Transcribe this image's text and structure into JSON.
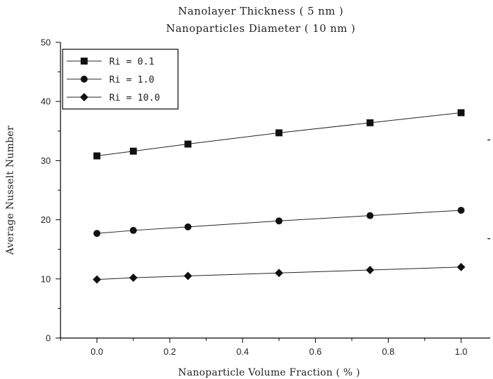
{
  "chart_data": {
    "type": "line",
    "title": "Nanolayer  Thickness    ( 5 nm )",
    "subtitle": "Nanoparticles Diameter  ( 10 nm )",
    "xlabel": "Nanoparticle Volume Fraction  ( % )",
    "ylabel": "Average Nusselt Number",
    "xlim": [
      -0.1,
      1.08
    ],
    "ylim": [
      0,
      50
    ],
    "xticks": [
      0.0,
      0.2,
      0.4,
      0.6,
      0.8,
      1.0
    ],
    "xtick_labels": [
      "0.0",
      "0.2",
      "0.4",
      "0.6",
      "0.8",
      "1.0"
    ],
    "yticks": [
      0,
      10,
      20,
      30,
      40,
      50
    ],
    "ytick_labels": [
      "0",
      "10",
      "20",
      "30",
      "40",
      "50"
    ],
    "grid": false,
    "legend_position": "top-left",
    "x": [
      0.0,
      0.1,
      0.25,
      0.5,
      0.75,
      1.0
    ],
    "series": [
      {
        "name": "Ri = 0.1",
        "marker": "square",
        "values": [
          30.8,
          31.6,
          32.8,
          34.7,
          36.4,
          38.1
        ]
      },
      {
        "name": "Ri = 1.0",
        "marker": "circle",
        "values": [
          17.7,
          18.2,
          18.8,
          19.8,
          20.7,
          21.6
        ]
      },
      {
        "name": "Ri = 10.0",
        "marker": "diamond",
        "values": [
          9.9,
          10.2,
          10.5,
          11.0,
          11.5,
          12.0
        ]
      }
    ]
  }
}
